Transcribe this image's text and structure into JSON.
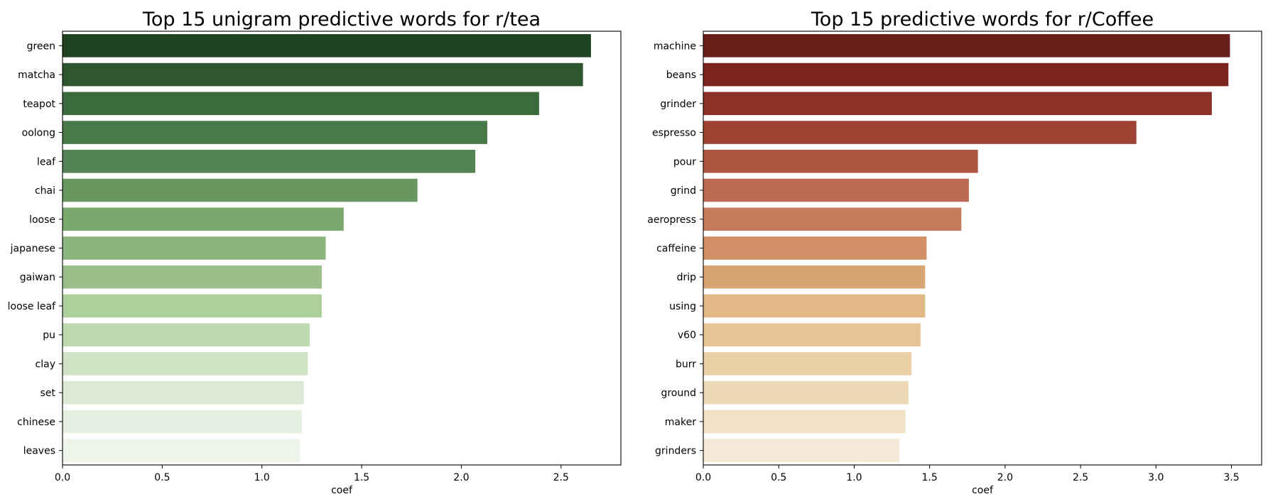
{
  "charts": [
    {
      "id": "tea",
      "type": "bar",
      "orientation": "horizontal",
      "title": "Top 15 unigram predictive words for r/tea",
      "xlabel": "coef",
      "ylabel": "",
      "xlim": [
        0,
        2.8
      ],
      "xticks": [
        0.0,
        0.5,
        1.0,
        1.5,
        2.0,
        2.5
      ],
      "xtick_labels": [
        "0.0",
        "0.5",
        "1.0",
        "1.5",
        "2.0",
        "2.5"
      ],
      "grid": false,
      "categories": [
        "green",
        "matcha",
        "teapot",
        "oolong",
        "leaf",
        "chai",
        "loose",
        "japanese",
        "gaiwan",
        "loose leaf",
        "pu",
        "clay",
        "set",
        "chinese",
        "leaves"
      ],
      "values": [
        2.65,
        2.61,
        2.39,
        2.13,
        2.07,
        1.78,
        1.41,
        1.32,
        1.3,
        1.3,
        1.24,
        1.23,
        1.21,
        1.2,
        1.19
      ],
      "colors": [
        "#1f4220",
        "#2e562f",
        "#3b6a3c",
        "#477a48",
        "#548455",
        "#68975f",
        "#7aa96d",
        "#8bb57c",
        "#9bbf8a",
        "#acd09b",
        "#bed8b0",
        "#cfe2c4",
        "#dce9d4",
        "#e6f0e0",
        "#eef4ea"
      ]
    },
    {
      "id": "coffee",
      "type": "bar",
      "orientation": "horizontal",
      "title": "Top 15 predictive words for r/Coffee",
      "xlabel": "coef",
      "ylabel": "",
      "xlim": [
        0,
        3.7
      ],
      "xticks": [
        0.0,
        0.5,
        1.0,
        1.5,
        2.0,
        2.5,
        3.0,
        3.5
      ],
      "xtick_labels": [
        "0.0",
        "0.5",
        "1.0",
        "1.5",
        "2.0",
        "2.5",
        "3.0",
        "3.5"
      ],
      "grid": false,
      "categories": [
        "machine",
        "beans",
        "grinder",
        "espresso",
        "pour",
        "grind",
        "aeropress",
        "caffeine",
        "drip",
        "using",
        "v60",
        "burr",
        "ground",
        "maker",
        "grinders"
      ],
      "values": [
        3.49,
        3.48,
        3.37,
        2.87,
        1.82,
        1.76,
        1.71,
        1.48,
        1.47,
        1.47,
        1.44,
        1.38,
        1.36,
        1.34,
        1.3
      ],
      "colors": [
        "#6a1f1a",
        "#7b241e",
        "#8c3127",
        "#9c4333",
        "#ad5742",
        "#bb6b52",
        "#c67c5c",
        "#d18f67",
        "#d9a474",
        "#e1b886",
        "#e5c595",
        "#eacfa7",
        "#edd8b5",
        "#f1e2c6",
        "#f4e9d6"
      ]
    }
  ]
}
